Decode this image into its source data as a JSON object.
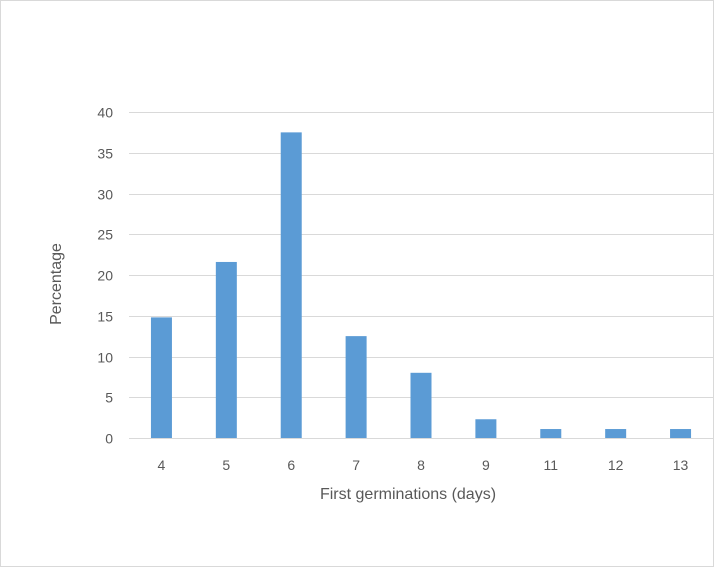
{
  "chart_data": {
    "type": "bar",
    "title": "",
    "xlabel": "First germinations (days)",
    "ylabel": "Percentage",
    "categories": [
      "4",
      "5",
      "6",
      "7",
      "8",
      "9",
      "11",
      "12",
      "13"
    ],
    "values": [
      14.8,
      21.6,
      37.5,
      12.5,
      8.0,
      2.3,
      1.1,
      1.1,
      1.1
    ],
    "ylim": [
      0,
      40
    ],
    "yticks": [
      "0",
      "5",
      "10",
      "15",
      "20",
      "25",
      "30",
      "35",
      "40"
    ],
    "grid": true,
    "legend": "none",
    "bar_color": "#5b9bd5",
    "grid_color": "#d9d9d9"
  }
}
